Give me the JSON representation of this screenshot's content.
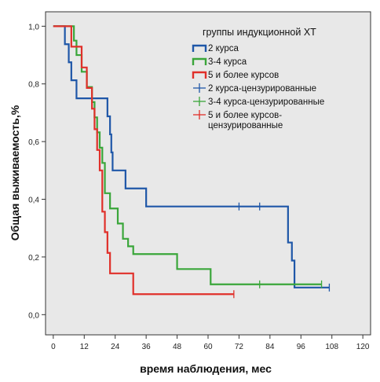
{
  "chart_data": {
    "type": "line",
    "step": true,
    "xlabel": "время наблюдения, мес",
    "ylabel": "Общая выживаемость,%",
    "xlim": [
      -3,
      123
    ],
    "ylim": [
      -0.07,
      1.05
    ],
    "xticks": [
      0,
      12,
      24,
      36,
      48,
      60,
      72,
      84,
      96,
      108,
      120
    ],
    "xtick_labels": [
      "0",
      "12",
      "24",
      "36",
      "48",
      "60",
      "72",
      "84",
      "96",
      "108",
      "120"
    ],
    "yticks": [
      0.0,
      0.2,
      0.4,
      0.6,
      0.8,
      1.0
    ],
    "ytick_labels": [
      "0,0",
      "0,2",
      "0,4",
      "0,6",
      "0,8",
      "1,0"
    ],
    "grid": false,
    "background": "#e8e8e8",
    "legend_title": "группы индукционной ХТ",
    "legend_position": "top-right",
    "series": [
      {
        "name": "2 курса",
        "color": "#1f57a8",
        "x": [
          0,
          4.5,
          6,
          7,
          9,
          10.5,
          21,
          22,
          22.5,
          23,
          28,
          36,
          91,
          92.5,
          93.5,
          107
        ],
        "y": [
          1.0,
          0.9375,
          0.875,
          0.8125,
          0.75,
          0.75,
          0.6875,
          0.625,
          0.5625,
          0.5,
          0.4375,
          0.375,
          0.25,
          0.1875,
          0.094,
          0.094
        ]
      },
      {
        "name": "3-4 курса",
        "color": "#3aa63a",
        "x": [
          0,
          8,
          9,
          11,
          13,
          15,
          16,
          17,
          18,
          19,
          20,
          22,
          25,
          27,
          29,
          31,
          48,
          61,
          104
        ],
        "y": [
          1.0,
          0.95,
          0.9,
          0.842,
          0.789,
          0.737,
          0.684,
          0.632,
          0.579,
          0.526,
          0.421,
          0.368,
          0.316,
          0.263,
          0.237,
          0.21,
          0.158,
          0.105,
          0.105
        ]
      },
      {
        "name": "5 и более курсов",
        "color": "#e0302a",
        "x": [
          0,
          7,
          11,
          13,
          15,
          16,
          17,
          18,
          19,
          20,
          21,
          22,
          31,
          70
        ],
        "y": [
          1.0,
          0.929,
          0.857,
          0.786,
          0.714,
          0.643,
          0.571,
          0.5,
          0.357,
          0.286,
          0.214,
          0.143,
          0.071,
          0.071
        ]
      }
    ],
    "censored": [
      {
        "name": "2 курса-цензурированные",
        "color": "#1f57a8",
        "x": [
          72,
          80,
          107
        ],
        "y": [
          0.375,
          0.375,
          0.094
        ]
      },
      {
        "name": "3-4 курса-цензурированные",
        "color": "#3aa63a",
        "x": [
          80,
          104
        ],
        "y": [
          0.105,
          0.105
        ]
      },
      {
        "name": "5 и более курсов-цензурированные",
        "color": "#e0302a",
        "x": [
          70
        ],
        "y": [
          0.071
        ]
      }
    ],
    "legend": {
      "title": "группы индукционной ХТ",
      "entries": [
        {
          "label": "2 курса",
          "kind": "step",
          "color": "#1f57a8"
        },
        {
          "label": "3-4 курса",
          "kind": "step",
          "color": "#3aa63a"
        },
        {
          "label": "5 и более курсов",
          "kind": "step",
          "color": "#e0302a"
        },
        {
          "label": "2 курса-цензурированные",
          "kind": "cross",
          "color": "#1f57a8"
        },
        {
          "label": "3-4 курса-цензурированные",
          "kind": "cross",
          "color": "#3aa63a"
        },
        {
          "label_lines": [
            "5 и более курсов-",
            "цензурированные"
          ],
          "kind": "cross",
          "color": "#e0302a"
        }
      ]
    }
  }
}
